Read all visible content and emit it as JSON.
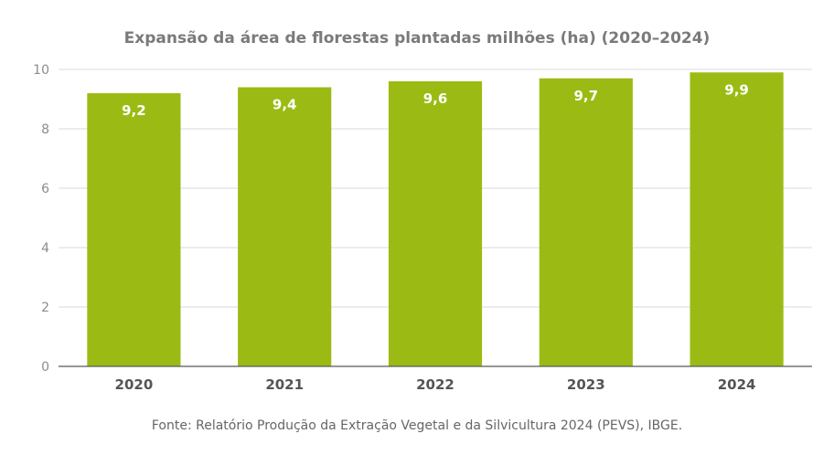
{
  "chart_data": {
    "type": "bar",
    "title": "Expansão da área de florestas plantadas milhões (ha) (2020–2024)",
    "categories": [
      "2020",
      "2021",
      "2022",
      "2023",
      "2024"
    ],
    "values": [
      9.2,
      9.4,
      9.6,
      9.7,
      9.9
    ],
    "value_labels": [
      "9,2",
      "9,4",
      "9,6",
      "9,7",
      "9,9"
    ],
    "ylim": [
      0,
      10
    ],
    "yticks": [
      0,
      2,
      4,
      6,
      8,
      10
    ],
    "ytick_labels": [
      "0",
      "2",
      "4",
      "6",
      "8",
      "10"
    ],
    "xlabel": "",
    "ylabel": "",
    "grid": true,
    "legend": "none",
    "bar_color": "#9bbb14",
    "source": "Fonte: Relatório Produção da Extração Vegetal e da Silvicultura 2024 (PEVS), IBGE."
  }
}
